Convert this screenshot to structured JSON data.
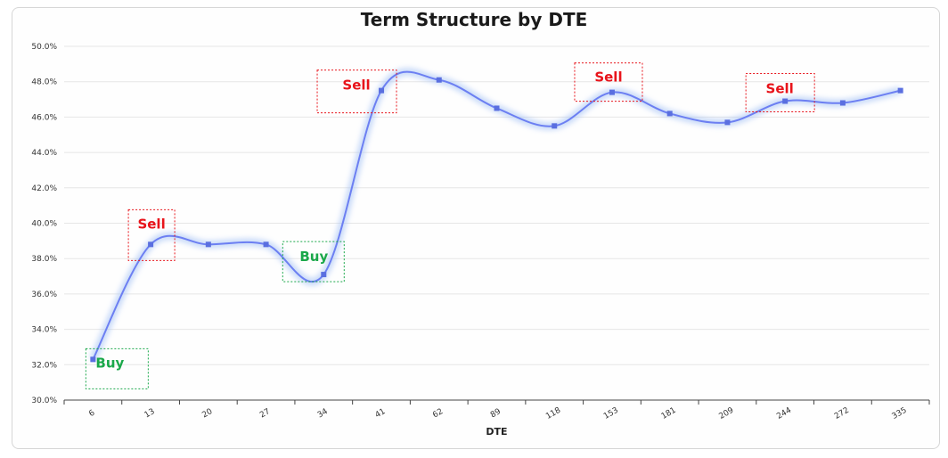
{
  "chart_data": {
    "type": "line",
    "title": "Term Structure by DTE",
    "xlabel": "DTE",
    "ylabel": "",
    "categories": [
      "6",
      "13",
      "20",
      "27",
      "34",
      "41",
      "62",
      "89",
      "118",
      "153",
      "181",
      "209",
      "244",
      "272",
      "335"
    ],
    "series": [
      {
        "values": [
          32.3,
          38.8,
          38.8,
          38.8,
          37.1,
          47.5,
          48.1,
          46.5,
          45.5,
          47.4,
          46.2,
          45.7,
          46.9,
          46.8,
          47.5
        ]
      }
    ],
    "ylim": [
      30.0,
      50.0
    ],
    "yticks": [
      "30.0%",
      "32.0%",
      "34.0%",
      "36.0%",
      "38.0%",
      "40.0%",
      "42.0%",
      "44.0%",
      "46.0%",
      "48.0%",
      "50.0%"
    ],
    "grid": true,
    "smooth": true,
    "colors": {
      "line": "#6c7ff2",
      "glow": "#a9c4f5",
      "marker": "#5a6fe0",
      "sell": "#e8141b",
      "buy": "#1aa84a"
    },
    "annotations": [
      {
        "label": "Buy",
        "kind": "buy",
        "category": "6"
      },
      {
        "label": "Sell",
        "kind": "sell",
        "category": "13"
      },
      {
        "label": "Buy",
        "kind": "buy",
        "category": "34"
      },
      {
        "label": "Sell",
        "kind": "sell",
        "category": "41"
      },
      {
        "label": "Sell",
        "kind": "sell",
        "category": "153"
      },
      {
        "label": "Sell",
        "kind": "sell",
        "category": "244"
      }
    ]
  }
}
